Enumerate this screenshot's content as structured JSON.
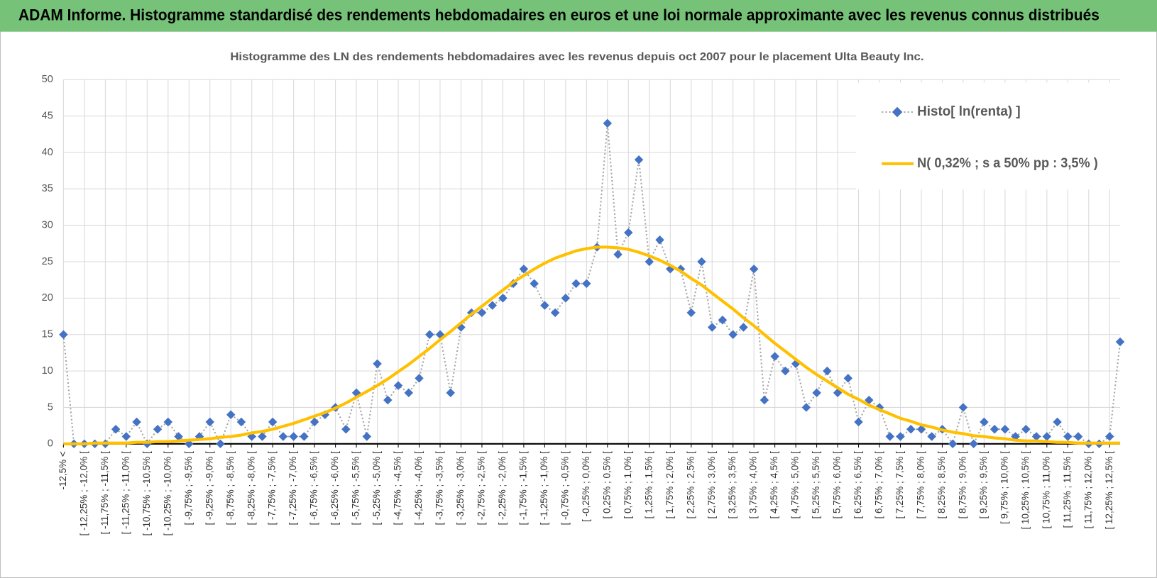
{
  "header": {
    "title": "ADAM Informe. Histogramme standardisé des rendements hebdomadaires en euros et une loi normale approximante avec les revenus connus distribués"
  },
  "chart_data": {
    "type": "line",
    "title": "Histogramme des LN des rendements hebdomadaires avec les revenus depuis oct 2007 pour le placement Ulta Beauty Inc.",
    "categories": [
      "-12,5% <",
      null,
      "[ -12,25% ; -12,0% [",
      null,
      "[ -11,75% ; -11,5% [",
      null,
      "[ -11,25% ; -11,0% [",
      null,
      "[ -10,75% ; -10,5% [",
      null,
      "[ -10,25% ; -10,0% [",
      null,
      "[ -9,75% ; -9,5% [",
      null,
      "[ -9,25% ; -9,0% [",
      null,
      "[ -8,75% ; -8,5% [",
      null,
      "[ -8,25% ; -8,0% [",
      null,
      "[ -7,75% ; -7,5% [",
      null,
      "[ -7,25% ; -7,0% [",
      null,
      "[ -6,75% ; -6,5% [",
      null,
      "[ -6,25% ; -6,0% [",
      null,
      "[ -5,75% ; -5,5% [",
      null,
      "[ -5,25% ; -5,0% [",
      null,
      "[ -4,75% ; -4,5% [",
      null,
      "[ -4,25% ; -4,0% [",
      null,
      "[ -3,75% ; -3,5% [",
      null,
      "[ -3,25% ; -3,0% [",
      null,
      "[ -2,75% ; -2,5% [",
      null,
      "[ -2,25% ; -2,0% [",
      null,
      "[ -1,75% ; -1,5% [",
      null,
      "[ -1,25% ; -1,0% [",
      null,
      "[ -0,75% ; -0,5% [",
      null,
      "[ -0,25% ; 0,0% [",
      null,
      "[ 0,25% ; 0,5% [",
      null,
      "[ 0,75% ; 1,0% [",
      null,
      "[ 1,25% ; 1,5% [",
      null,
      "[ 1,75% ; 2,0% [",
      null,
      "[ 2,25% ; 2,5% [",
      null,
      "[ 2,75% ; 3,0% [",
      null,
      "[ 3,25% ; 3,5% [",
      null,
      "[ 3,75% ; 4,0% [",
      null,
      "[ 4,25% ; 4,5% [",
      null,
      "[ 4,75% ; 5,0% [",
      null,
      "[ 5,25% ; 5,5% [",
      null,
      "[ 5,75% ; 6,0% [",
      null,
      "[ 6,25% ; 6,5% [",
      null,
      "[ 6,75% ; 7,0% [",
      null,
      "[ 7,25% ; 7,5% [",
      null,
      "[ 7,75% ; 8,0% [",
      null,
      "[ 8,25% ; 8,5% [",
      null,
      "[ 8,75% ; 9,0% [",
      null,
      "[ 9,25% ; 9,5% [",
      null,
      "[ 9,75% ; 10,0% [",
      null,
      "[ 10,25% ; 10,5% [",
      null,
      "[ 10,75% ; 11,0% [",
      null,
      "[ 11,25% ; 11,5% [",
      null,
      "[ 11,75% ; 12,0% [",
      null,
      "[ 12,25% ; 12,5% [",
      null
    ],
    "series": [
      {
        "name": "Histo[ ln(renta) ]",
        "color": "#4472c4",
        "line_color": "#a6a6a6",
        "line_style": "dotted",
        "marker": "diamond",
        "values": [
          15,
          0,
          0,
          0,
          0,
          2,
          1,
          3,
          0,
          2,
          3,
          1,
          0,
          1,
          3,
          0,
          4,
          3,
          1,
          1,
          3,
          1,
          1,
          1,
          3,
          4,
          5,
          2,
          7,
          1,
          11,
          6,
          8,
          7,
          9,
          15,
          15,
          7,
          16,
          18,
          18,
          19,
          20,
          22,
          24,
          22,
          19,
          18,
          20,
          22,
          22,
          27,
          44,
          26,
          29,
          39,
          25,
          28,
          24,
          24,
          18,
          25,
          16,
          17,
          15,
          16,
          24,
          6,
          12,
          10,
          11,
          5,
          7,
          10,
          7,
          9,
          3,
          6,
          5,
          1,
          1,
          2,
          2,
          1,
          2,
          0,
          5,
          0,
          3,
          2,
          2,
          1,
          2,
          1,
          1,
          3,
          1,
          1,
          0,
          0,
          1,
          14
        ]
      },
      {
        "name": "N( 0,32% ; s a 50% pp : 3,5% )",
        "color": "#ffc000",
        "line_color": "#ffc000",
        "line_style": "solid",
        "marker": "none",
        "values": [
          0.0,
          0.0,
          0.0,
          0.1,
          0.1,
          0.1,
          0.1,
          0.2,
          0.2,
          0.3,
          0.3,
          0.4,
          0.5,
          0.6,
          0.7,
          0.9,
          1.0,
          1.2,
          1.5,
          1.7,
          2.0,
          2.4,
          2.8,
          3.3,
          3.8,
          4.3,
          4.9,
          5.6,
          6.4,
          7.2,
          8.0,
          8.9,
          9.9,
          10.9,
          12.0,
          13.1,
          14.3,
          15.4,
          16.6,
          17.8,
          18.9,
          20.0,
          21.1,
          22.2,
          23.1,
          24.0,
          24.8,
          25.5,
          26.0,
          26.5,
          26.8,
          27.0,
          27.0,
          26.9,
          26.7,
          26.3,
          25.8,
          25.2,
          24.5,
          23.7,
          22.7,
          21.8,
          20.7,
          19.6,
          18.5,
          17.3,
          16.2,
          15.0,
          13.8,
          12.7,
          11.6,
          10.5,
          9.5,
          8.6,
          7.7,
          6.8,
          6.1,
          5.3,
          4.7,
          4.1,
          3.5,
          3.1,
          2.6,
          2.3,
          1.9,
          1.6,
          1.4,
          1.1,
          1.0,
          0.8,
          0.7,
          0.5,
          0.4,
          0.4,
          0.3,
          0.2,
          0.2,
          0.1,
          0.1,
          0.1,
          0.1,
          0.1
        ]
      }
    ],
    "ylim": [
      0,
      50
    ],
    "yticks": [
      0,
      5,
      10,
      15,
      20,
      25,
      30,
      35,
      40,
      45,
      50
    ],
    "grid": true,
    "legend": "top-right"
  }
}
